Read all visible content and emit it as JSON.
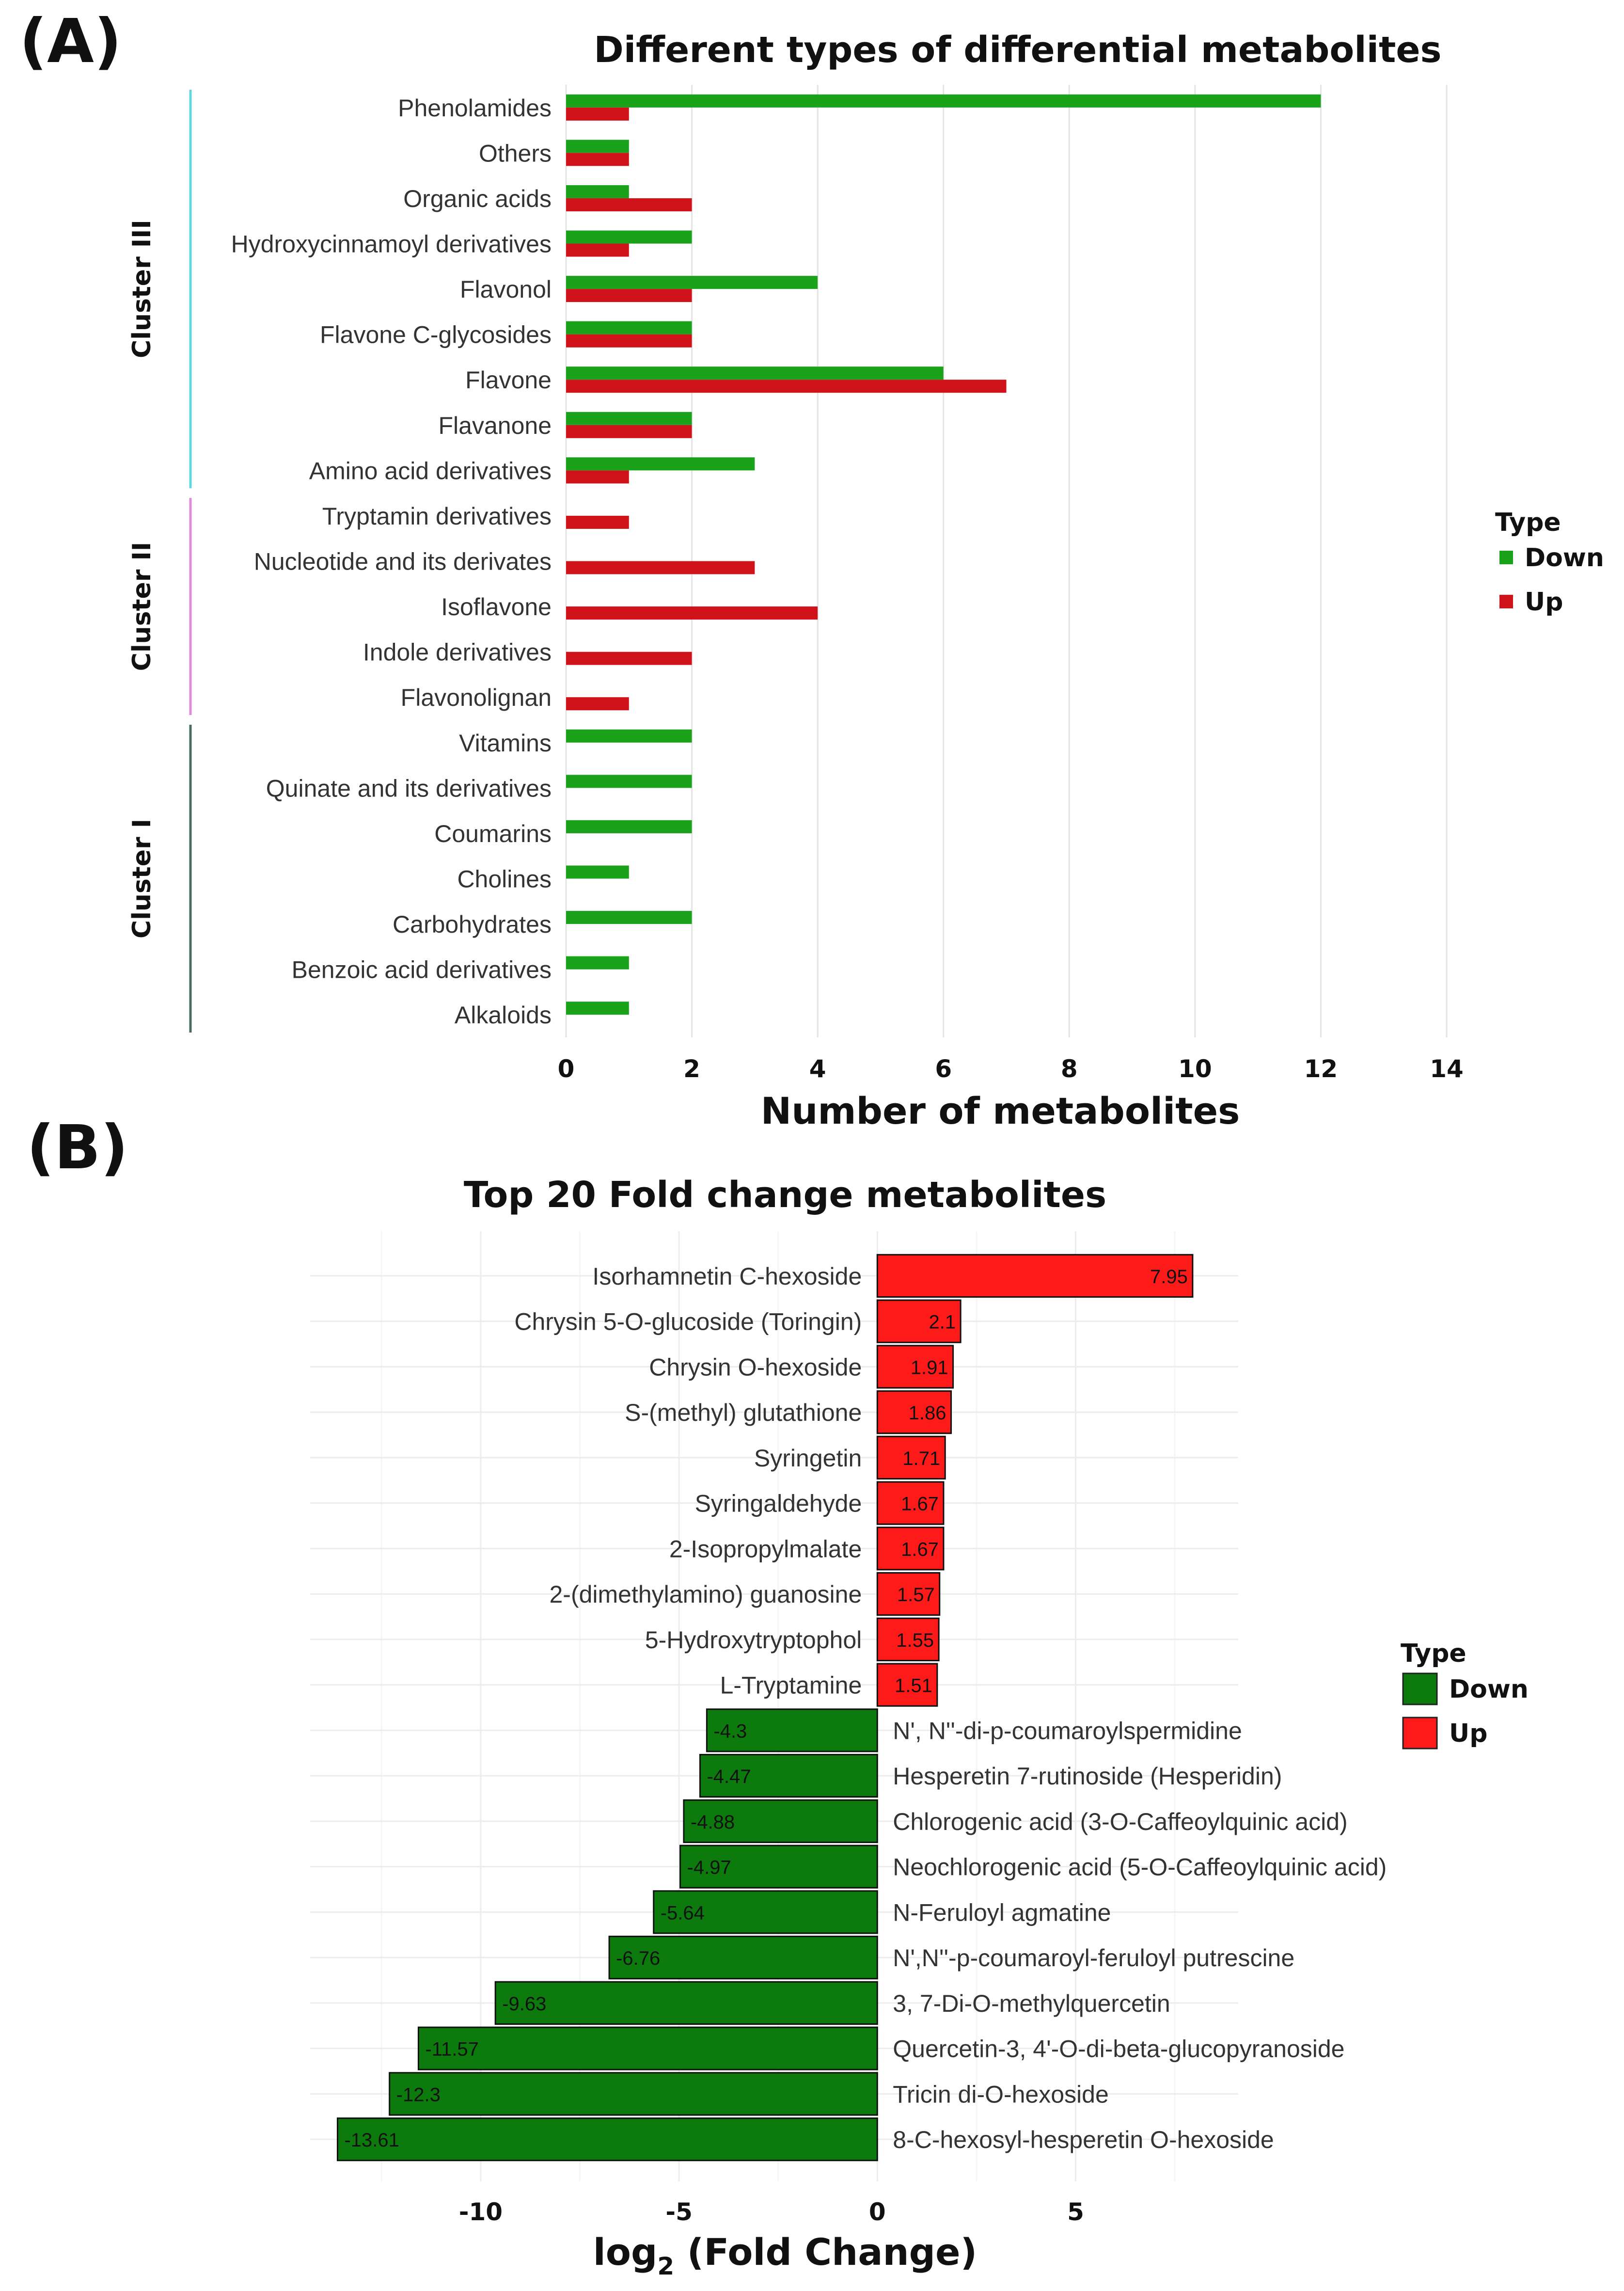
{
  "panelA": {
    "panel_label": "(A)",
    "legend_title": "Type",
    "legend": [
      {
        "name": "Down",
        "color": "#1aa31a"
      },
      {
        "name": "Up",
        "color": "#d0121b"
      }
    ],
    "clusters": [
      {
        "label": "Cluster III",
        "color": "#5fd8e0"
      },
      {
        "label": "Cluster II",
        "color": "#e08ad8"
      },
      {
        "label": "Cluster I",
        "color": "#4a6b62"
      }
    ]
  },
  "panelB": {
    "panel_label": "(B)",
    "legend_title": "Type",
    "legend": [
      {
        "name": "Down",
        "color": "#0c7a0c"
      },
      {
        "name": "Up",
        "color": "#ff1a1a"
      }
    ]
  },
  "chart_data": [
    {
      "type": "bar",
      "orientation": "horizontal",
      "title": "Different types of differential metabolites",
      "xlabel": "Number of metabolites",
      "ylabel": "",
      "xlim": [
        0,
        14
      ],
      "xticks": [
        0,
        2,
        4,
        6,
        8,
        10,
        12,
        14
      ],
      "grid": true,
      "legend_position": "right",
      "categories": [
        "Phenolamides",
        "Others",
        "Organic acids",
        "Hydroxycinnamoyl derivatives",
        "Flavonol",
        "Flavone C-glycosides",
        "Flavone",
        "Flavanone",
        "Amino acid derivatives",
        "Tryptamin derivatives",
        "Nucleotide and its derivates",
        "Isoflavone",
        "Indole derivatives",
        "Flavonolignan",
        "Vitamins",
        "Quinate and its derivatives",
        "Coumarins",
        "Cholines",
        "Carbohydrates",
        "Benzoic acid derivatives",
        "Alkaloids"
      ],
      "cluster_of": [
        "Cluster III",
        "Cluster III",
        "Cluster III",
        "Cluster III",
        "Cluster III",
        "Cluster III",
        "Cluster III",
        "Cluster III",
        "Cluster III",
        "Cluster II",
        "Cluster II",
        "Cluster II",
        "Cluster II",
        "Cluster II",
        "Cluster I",
        "Cluster I",
        "Cluster I",
        "Cluster I",
        "Cluster I",
        "Cluster I",
        "Cluster I"
      ],
      "series": [
        {
          "name": "Down",
          "color": "#1aa31a",
          "values": [
            12,
            1,
            1,
            2,
            4,
            2,
            6,
            2,
            3,
            0,
            0,
            0,
            0,
            0,
            2,
            2,
            2,
            1,
            2,
            1,
            1
          ]
        },
        {
          "name": "Up",
          "color": "#d0121b",
          "values": [
            1,
            1,
            2,
            1,
            2,
            2,
            7,
            2,
            1,
            1,
            3,
            4,
            2,
            1,
            0,
            0,
            0,
            0,
            0,
            0,
            0
          ]
        }
      ]
    },
    {
      "type": "bar",
      "orientation": "horizontal",
      "title": "Top 20 Fold change metabolites",
      "xlabel": "log2 (Fold Change)",
      "xlabel_main": "log",
      "xlabel_sub": "2",
      "xlabel_rest": " (Fold Change)",
      "ylabel": "",
      "xlim": [
        -14.3,
        9.1
      ],
      "xticks": [
        -10,
        -5,
        0,
        5
      ],
      "xtick_labels": [
        "-10",
        "-5",
        "0",
        "5"
      ],
      "grid": true,
      "legend_position": "right",
      "items": [
        {
          "label": "Isorhamnetin C-hexoside",
          "value": 7.95,
          "value_label": "7.95",
          "type": "Up"
        },
        {
          "label": "Chrysin 5-O-glucoside (Toringin)",
          "value": 2.1,
          "value_label": "2.1",
          "type": "Up"
        },
        {
          "label": "Chrysin O-hexoside",
          "value": 1.91,
          "value_label": "1.91",
          "type": "Up"
        },
        {
          "label": "S-(methyl) glutathione",
          "value": 1.86,
          "value_label": "1.86",
          "type": "Up"
        },
        {
          "label": "Syringetin",
          "value": 1.71,
          "value_label": "1.71",
          "type": "Up"
        },
        {
          "label": "Syringaldehyde",
          "value": 1.67,
          "value_label": "1.67",
          "type": "Up"
        },
        {
          "label": "2-Isopropylmalate",
          "value": 1.67,
          "value_label": "1.67",
          "type": "Up"
        },
        {
          "label": "2-(dimethylamino) guanosine",
          "value": 1.57,
          "value_label": "1.57",
          "type": "Up"
        },
        {
          "label": "5-Hydroxytryptophol",
          "value": 1.55,
          "value_label": "1.55",
          "type": "Up"
        },
        {
          "label": "L-Tryptamine",
          "value": 1.51,
          "value_label": "1.51",
          "type": "Up"
        },
        {
          "label": "N', N''-di-p-coumaroylspermidine",
          "value": -4.3,
          "value_label": "-4.3",
          "type": "Down"
        },
        {
          "label": "Hesperetin 7-rutinoside (Hesperidin)",
          "value": -4.47,
          "value_label": "-4.47",
          "type": "Down"
        },
        {
          "label": "Chlorogenic acid (3-O-Caffeoylquinic acid)",
          "value": -4.88,
          "value_label": "-4.88",
          "type": "Down"
        },
        {
          "label": "Neochlorogenic acid (5-O-Caffeoylquinic acid)",
          "value": -4.97,
          "value_label": "-4.97",
          "type": "Down"
        },
        {
          "label": "N-Feruloyl agmatine",
          "value": -5.64,
          "value_label": "-5.64",
          "type": "Down"
        },
        {
          "label": "N',N''-p-coumaroyl-feruloyl putrescine",
          "value": -6.76,
          "value_label": "-6.76",
          "type": "Down"
        },
        {
          "label": "3, 7-Di-O-methylquercetin",
          "value": -9.63,
          "value_label": "-9.63",
          "type": "Down"
        },
        {
          "label": "Quercetin-3, 4'-O-di-beta-glucopyranoside",
          "value": -11.57,
          "value_label": "-11.57",
          "type": "Down"
        },
        {
          "label": "Tricin di-O-hexoside",
          "value": -12.3,
          "value_label": "-12.3",
          "type": "Down"
        },
        {
          "label": "8-C-hexosyl-hesperetin O-hexoside",
          "value": -13.61,
          "value_label": "-13.61",
          "type": "Down"
        }
      ]
    }
  ]
}
